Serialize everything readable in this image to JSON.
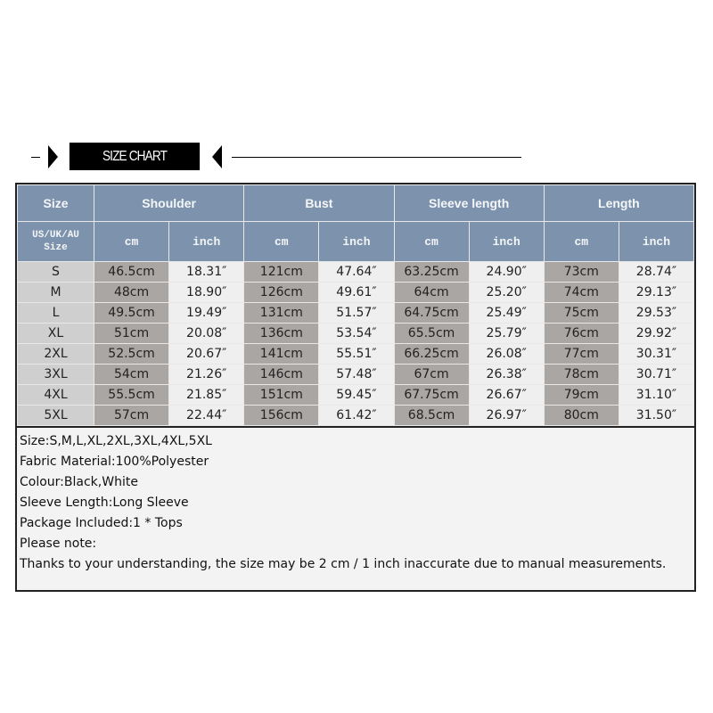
{
  "title": "SIZE CHART",
  "header": {
    "size": "Size",
    "groups": [
      "Shoulder",
      "Bust",
      "Sleeve length",
      "Length"
    ],
    "sub_size": "US/UK/AU Size",
    "cm": "cm",
    "inch": "inch"
  },
  "rows": [
    [
      "S",
      "46.5cm",
      "18.31″",
      "121cm",
      "47.64″",
      "63.25cm",
      "24.90″",
      "73cm",
      "28.74″"
    ],
    [
      "M",
      "48cm",
      "18.90″",
      "126cm",
      "49.61″",
      "64cm",
      "25.20″",
      "74cm",
      "29.13″"
    ],
    [
      "L",
      "49.5cm",
      "19.49″",
      "131cm",
      "51.57″",
      "64.75cm",
      "25.49″",
      "75cm",
      "29.53″"
    ],
    [
      "XL",
      "51cm",
      "20.08″",
      "136cm",
      "53.54″",
      "65.5cm",
      "25.79″",
      "76cm",
      "29.92″"
    ],
    [
      "2XL",
      "52.5cm",
      "20.67″",
      "141cm",
      "55.51″",
      "66.25cm",
      "26.08″",
      "77cm",
      "30.31″"
    ],
    [
      "3XL",
      "54cm",
      "21.26″",
      "146cm",
      "57.48″",
      "67cm",
      "26.38″",
      "78cm",
      "30.71″"
    ],
    [
      "4XL",
      "55.5cm",
      "21.85″",
      "151cm",
      "59.45″",
      "67.75cm",
      "26.67″",
      "79cm",
      "31.10″"
    ],
    [
      "5XL",
      "57cm",
      "22.44″",
      "156cm",
      "61.42″",
      "68.5cm",
      "26.97″",
      "80cm",
      "31.50″"
    ]
  ],
  "notes": [
    "Size:S,M,L,XL,2XL,3XL,4XL,5XL",
    "Fabric Material:100%Polyester",
    "Colour:Black,White",
    "Sleeve Length:Long Sleeve",
    "Package Included:1 * Tops",
    "Please note:",
    "Thanks to your understanding, the size may be 2 cm / 1 inch inaccurate due to manual measurements."
  ],
  "colors": {
    "header": "#7d93ad",
    "cm_cell": "#aaa6a4",
    "inch_cell": "#efefef",
    "size_cell": "#cfcfcf"
  }
}
